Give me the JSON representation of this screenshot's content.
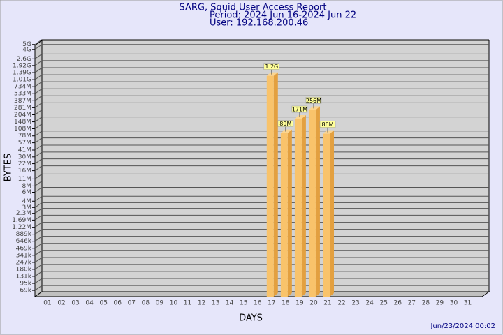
{
  "chart_data": {
    "type": "bar",
    "title": "SARG, Squid User Access Report",
    "subtitle": [
      "Period: 2024 Jun 16-2024 Jun 22",
      "User: 192.168.200.46"
    ],
    "xlabel": "DAYS",
    "ylabel": "BYTES",
    "footer": "Jun/23/2024 00:02",
    "categories": [
      "01",
      "02",
      "03",
      "04",
      "05",
      "06",
      "07",
      "08",
      "09",
      "10",
      "11",
      "12",
      "13",
      "14",
      "15",
      "16",
      "17",
      "18",
      "19",
      "20",
      "21",
      "22",
      "23",
      "24",
      "25",
      "26",
      "27",
      "28",
      "29",
      "30",
      "31"
    ],
    "values": [
      null,
      null,
      null,
      null,
      null,
      null,
      null,
      null,
      null,
      null,
      null,
      null,
      null,
      null,
      null,
      null,
      1200000000,
      89000000,
      171000000,
      256000000,
      86000000,
      null,
      null,
      null,
      null,
      null,
      null,
      null,
      null,
      null,
      null
    ],
    "value_labels": [
      null,
      null,
      null,
      null,
      null,
      null,
      null,
      null,
      null,
      null,
      null,
      null,
      null,
      null,
      null,
      null,
      "1.2G",
      "89M",
      "171M",
      "256M",
      "86M",
      null,
      null,
      null,
      null,
      null,
      null,
      null,
      null,
      null,
      null
    ],
    "color": "#f9c36b",
    "log_scale": true,
    "grid": true,
    "ylim": [
      52000,
      6000000000
    ],
    "yticks": [
      {
        "value": 5000000000,
        "label": "5G"
      },
      {
        "value": 4000000000,
        "label": "4G"
      },
      {
        "value": 2600000000,
        "label": "2.6G"
      },
      {
        "value": 1920000000,
        "label": "1.92G"
      },
      {
        "value": 1390000000,
        "label": "1.39G"
      },
      {
        "value": 1010000000,
        "label": "1.01G"
      },
      {
        "value": 734000000,
        "label": "734M"
      },
      {
        "value": 533000000,
        "label": "533M"
      },
      {
        "value": 387000000,
        "label": "387M"
      },
      {
        "value": 281000000,
        "label": "281M"
      },
      {
        "value": 204000000,
        "label": "204M"
      },
      {
        "value": 148000000,
        "label": "148M"
      },
      {
        "value": 108000000,
        "label": "108M"
      },
      {
        "value": 78000000,
        "label": "78M"
      },
      {
        "value": 57000000,
        "label": "57M"
      },
      {
        "value": 41000000,
        "label": "41M"
      },
      {
        "value": 30000000,
        "label": "30M"
      },
      {
        "value": 22000000,
        "label": "22M"
      },
      {
        "value": 16000000,
        "label": "16M"
      },
      {
        "value": 11000000,
        "label": "11M"
      },
      {
        "value": 8000000,
        "label": "8M"
      },
      {
        "value": 6000000,
        "label": "6M"
      },
      {
        "value": 4000000,
        "label": "4M"
      },
      {
        "value": 3000000,
        "label": "3M"
      },
      {
        "value": 2300000,
        "label": "2.3M"
      },
      {
        "value": 1690000,
        "label": "1.69M"
      },
      {
        "value": 1220000,
        "label": "1.22M"
      },
      {
        "value": 889000,
        "label": "889k"
      },
      {
        "value": 646000,
        "label": "646k"
      },
      {
        "value": 469000,
        "label": "469k"
      },
      {
        "value": 341000,
        "label": "341k"
      },
      {
        "value": 247000,
        "label": "247k"
      },
      {
        "value": 180000,
        "label": "180k"
      },
      {
        "value": 131000,
        "label": "131k"
      },
      {
        "value": 95000,
        "label": "95k"
      },
      {
        "value": 69000,
        "label": "69k"
      }
    ]
  }
}
